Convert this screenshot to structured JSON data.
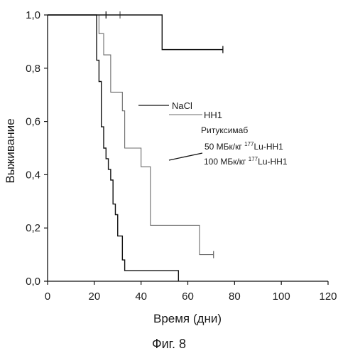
{
  "figure_caption": "Фиг. 8",
  "chart_data": {
    "type": "line",
    "subtype": "kaplan-meier-step",
    "xlabel": "Время (дни)",
    "ylabel": "Выживание",
    "xlim": [
      0,
      120
    ],
    "ylim": [
      0.0,
      1.0
    ],
    "x_ticks": [
      "0",
      "20",
      "40",
      "60",
      "80",
      "100",
      "120"
    ],
    "y_ticks": [
      "0,0",
      "0,2",
      "0,4",
      "0,6",
      "0,8",
      "1,0"
    ],
    "grid": false,
    "legend_position": "right-middle",
    "legend": {
      "nacl": "NaCl",
      "hh1": "HH1",
      "rituximab": "Ритуксимаб",
      "lu50_prefix": "50 МБк/кг ",
      "lu100_prefix": "100 МБк/кг ",
      "isotope_mass": "177",
      "isotope_rest": "Lu-HH1"
    },
    "series": [
      {
        "name": "NaCl",
        "color": "#111111",
        "steps": [
          [
            0,
            1.0
          ],
          [
            21,
            0.83
          ],
          [
            22,
            0.75
          ],
          [
            23,
            0.58
          ],
          [
            24,
            0.5
          ],
          [
            25,
            0.46
          ],
          [
            26,
            0.42
          ],
          [
            27,
            0.38
          ],
          [
            28,
            0.29
          ],
          [
            29,
            0.25
          ],
          [
            30,
            0.17
          ],
          [
            32,
            0.08
          ],
          [
            33,
            0.04
          ],
          [
            56,
            0.0
          ]
        ],
        "end_x": 56
      },
      {
        "name": "HH1",
        "color": "#6b6b6b",
        "steps": [
          [
            0,
            1.0
          ],
          [
            22,
            0.93
          ],
          [
            24,
            0.85
          ],
          [
            27,
            0.71
          ],
          [
            32,
            0.64
          ],
          [
            33,
            0.5
          ],
          [
            40,
            0.43
          ],
          [
            44,
            0.21
          ],
          [
            65,
            0.1
          ]
        ],
        "end_x": 71,
        "censored": [
          [
            31,
            1.0
          ],
          [
            71,
            0.1
          ]
        ]
      },
      {
        "name": "Ритуксимаб 50 МБк/кг 177Lu-HH1",
        "color": "#111111",
        "steps": [
          [
            0,
            1.0
          ],
          [
            49,
            0.87
          ]
        ],
        "end_x": 75,
        "censored": [
          [
            25,
            1.0
          ],
          [
            75,
            0.87
          ]
        ]
      }
    ]
  }
}
